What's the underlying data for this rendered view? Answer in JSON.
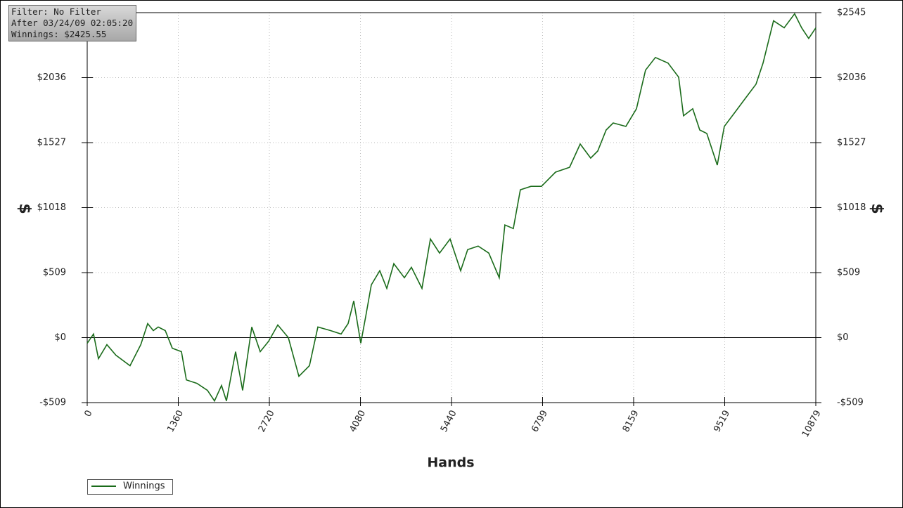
{
  "chart_data": {
    "type": "line",
    "info": [
      "Filter: No Filter",
      "After 03/24/09 02:05:20",
      "Winnings: $2425.55"
    ],
    "xlabel": "Hands",
    "ylabel": "$",
    "xlim": [
      0,
      10879
    ],
    "ylim": [
      -509,
      2545
    ],
    "xticks": [
      0,
      1360,
      2720,
      4080,
      5440,
      6799,
      8159,
      9519,
      10879
    ],
    "yticks": [
      {
        "value": -509,
        "label": "-$509"
      },
      {
        "value": 0,
        "label": "$0"
      },
      {
        "value": 509,
        "label": "$509"
      },
      {
        "value": 1018,
        "label": "$1018"
      },
      {
        "value": 1527,
        "label": "$1527"
      },
      {
        "value": 2036,
        "label": "$2036"
      },
      {
        "value": 2545,
        "label": "$2545"
      }
    ],
    "grid": true,
    "x": [
      0,
      95,
      168,
      294,
      430,
      640,
      800,
      903,
      987,
      1061,
      1166,
      1271,
      1407,
      1481,
      1638,
      1796,
      1901,
      2006,
      2079,
      2216,
      2321,
      2457,
      2583,
      2709,
      2846,
      3003,
      3161,
      3318,
      3444,
      3633,
      3791,
      3896,
      3980,
      4085,
      4158,
      4242,
      4368,
      4473,
      4578,
      4736,
      4841,
      4998,
      5124,
      5261,
      5418,
      5576,
      5681,
      5838,
      5996,
      6153,
      6237,
      6363,
      6468,
      6626,
      6783,
      6993,
      7203,
      7361,
      7518,
      7623,
      7749,
      7854,
      8043,
      8201,
      8337,
      8484,
      8673,
      8831,
      8904,
      9041,
      9146,
      9251,
      9408,
      9513,
      9671,
      9828,
      9986,
      10091,
      10248,
      10406,
      10563,
      10668,
      10773,
      10879
    ],
    "series": [
      {
        "name": "Winnings",
        "color": "#1a6b1a",
        "values": [
          -44,
          28,
          -165,
          -55,
          -138,
          -220,
          -55,
          110,
          55,
          83,
          55,
          -83,
          -110,
          -331,
          -358,
          -413,
          -496,
          -375,
          -496,
          -110,
          -413,
          83,
          -110,
          -28,
          99,
          0,
          -303,
          -220,
          83,
          55,
          28,
          110,
          287,
          -44,
          165,
          413,
          524,
          386,
          579,
          469,
          551,
          386,
          772,
          662,
          772,
          524,
          689,
          717,
          662,
          469,
          882,
          854,
          1158,
          1185,
          1185,
          1296,
          1334,
          1516,
          1406,
          1461,
          1626,
          1681,
          1654,
          1792,
          2095,
          2194,
          2150,
          2040,
          1737,
          1792,
          1626,
          1599,
          1351,
          1654,
          1764,
          1874,
          1985,
          2150,
          2481,
          2426,
          2536,
          2426,
          2343,
          2425.55
        ]
      }
    ]
  }
}
